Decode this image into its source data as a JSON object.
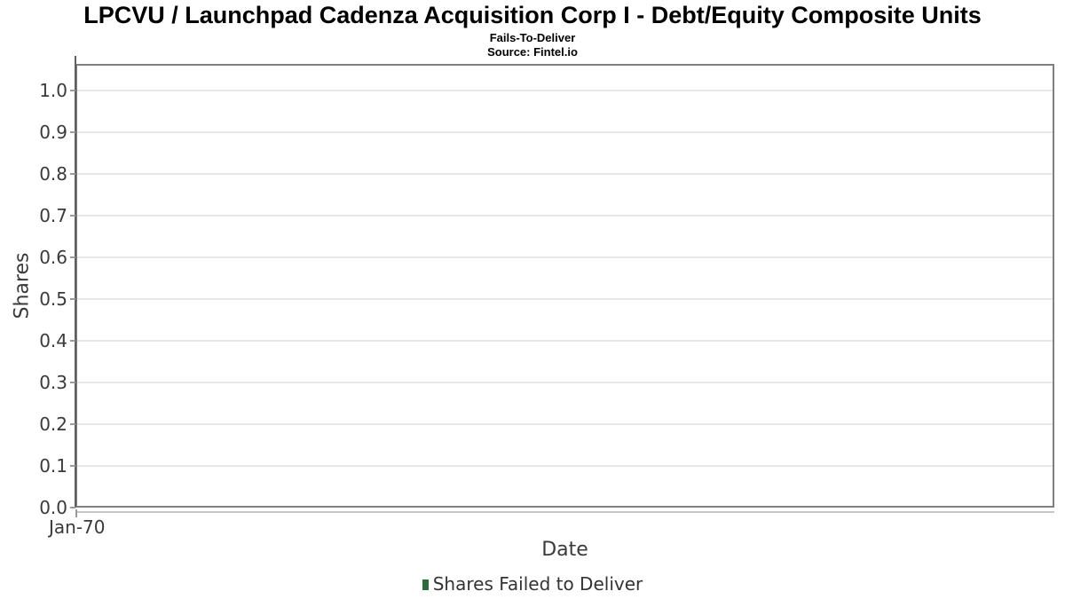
{
  "chart_data": {
    "type": "bar",
    "title": "LPCVU / Launchpad Cadenza Acquisition Corp I - Debt/Equity Composite Units",
    "subtitle": "Fails-To-Deliver",
    "source": "Source: Fintel.io",
    "xlabel": "Date",
    "ylabel": "Shares",
    "x_ticks": [
      "Jan-70"
    ],
    "y_ticks": [
      0.0,
      0.1,
      0.2,
      0.3,
      0.4,
      0.5,
      0.6,
      0.7,
      0.8,
      0.9,
      1.0
    ],
    "ylim": [
      0.0,
      1.06
    ],
    "grid": true,
    "legend_position": "bottom",
    "series": [
      {
        "name": "Shares Failed to Deliver",
        "type": "bar",
        "color": "#2d6a3e",
        "x": [],
        "values": []
      }
    ]
  },
  "colors": {
    "background": "#ffffff",
    "title_text": "#000000",
    "axis_text": "#3a3a3a",
    "legend_text": "#333333",
    "plot_border": "#808080",
    "axis_line": "#5f5f5f",
    "x_axis_line": "#c8c8c8",
    "gridline": "#e8e8e8",
    "tick_mark": "#9a9a9a",
    "legend_marker": "#2d6a3e"
  }
}
